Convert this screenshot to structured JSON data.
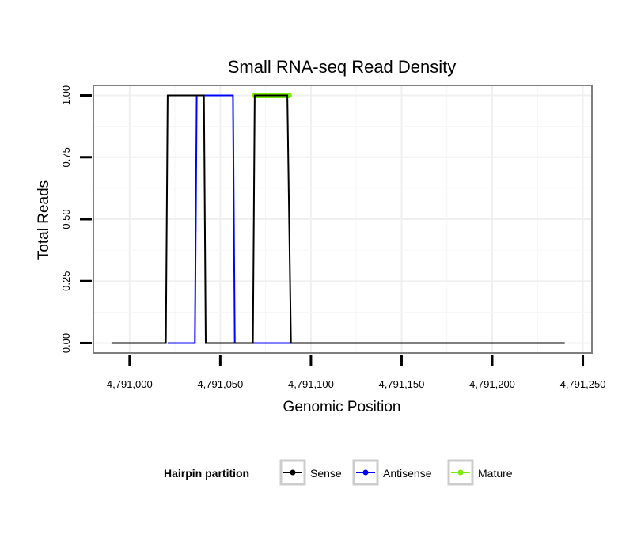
{
  "chart_data": {
    "type": "line",
    "title": "Small RNA-seq Read Density",
    "xlabel": "Genomic Position",
    "ylabel": "Total Reads",
    "xlim": [
      4790980,
      4791255
    ],
    "ylim": [
      -0.04,
      1.04
    ],
    "xticks": [
      4791000,
      4791050,
      4791100,
      4791150,
      4791200,
      4791250
    ],
    "xtick_labels": [
      "4,791,000",
      "4,791,050",
      "4,791,100",
      "4,791,150",
      "4,791,200",
      "4,791,250"
    ],
    "yticks": [
      0,
      0.25,
      0.5,
      0.75,
      1.0
    ],
    "ytick_labels": [
      "0.00",
      "0.25",
      "0.50",
      "0.75",
      "1.00"
    ],
    "grid": true,
    "legend": {
      "title": "Hairpin partition",
      "position": "bottom",
      "entries": [
        "Sense",
        "Antisense",
        "Mature"
      ]
    },
    "series": [
      {
        "name": "Antisense",
        "color": "#0000ff",
        "x": [
          4791021,
          4791036,
          4791037,
          4791057,
          4791058,
          4791240
        ],
        "y": [
          0,
          0,
          1,
          1,
          0,
          0
        ]
      },
      {
        "name": "Mature",
        "color": "#76ee00",
        "x": [
          4791069,
          4791088
        ],
        "y": [
          1,
          1
        ]
      },
      {
        "name": "Sense",
        "color": "#000000",
        "x": [
          4790990,
          4791020,
          4791021,
          4791041,
          4791042,
          4791068,
          4791069,
          4791087,
          4791089,
          4791240
        ],
        "y": [
          0,
          0,
          1,
          1,
          0,
          0,
          1,
          1,
          0,
          0
        ]
      }
    ]
  }
}
